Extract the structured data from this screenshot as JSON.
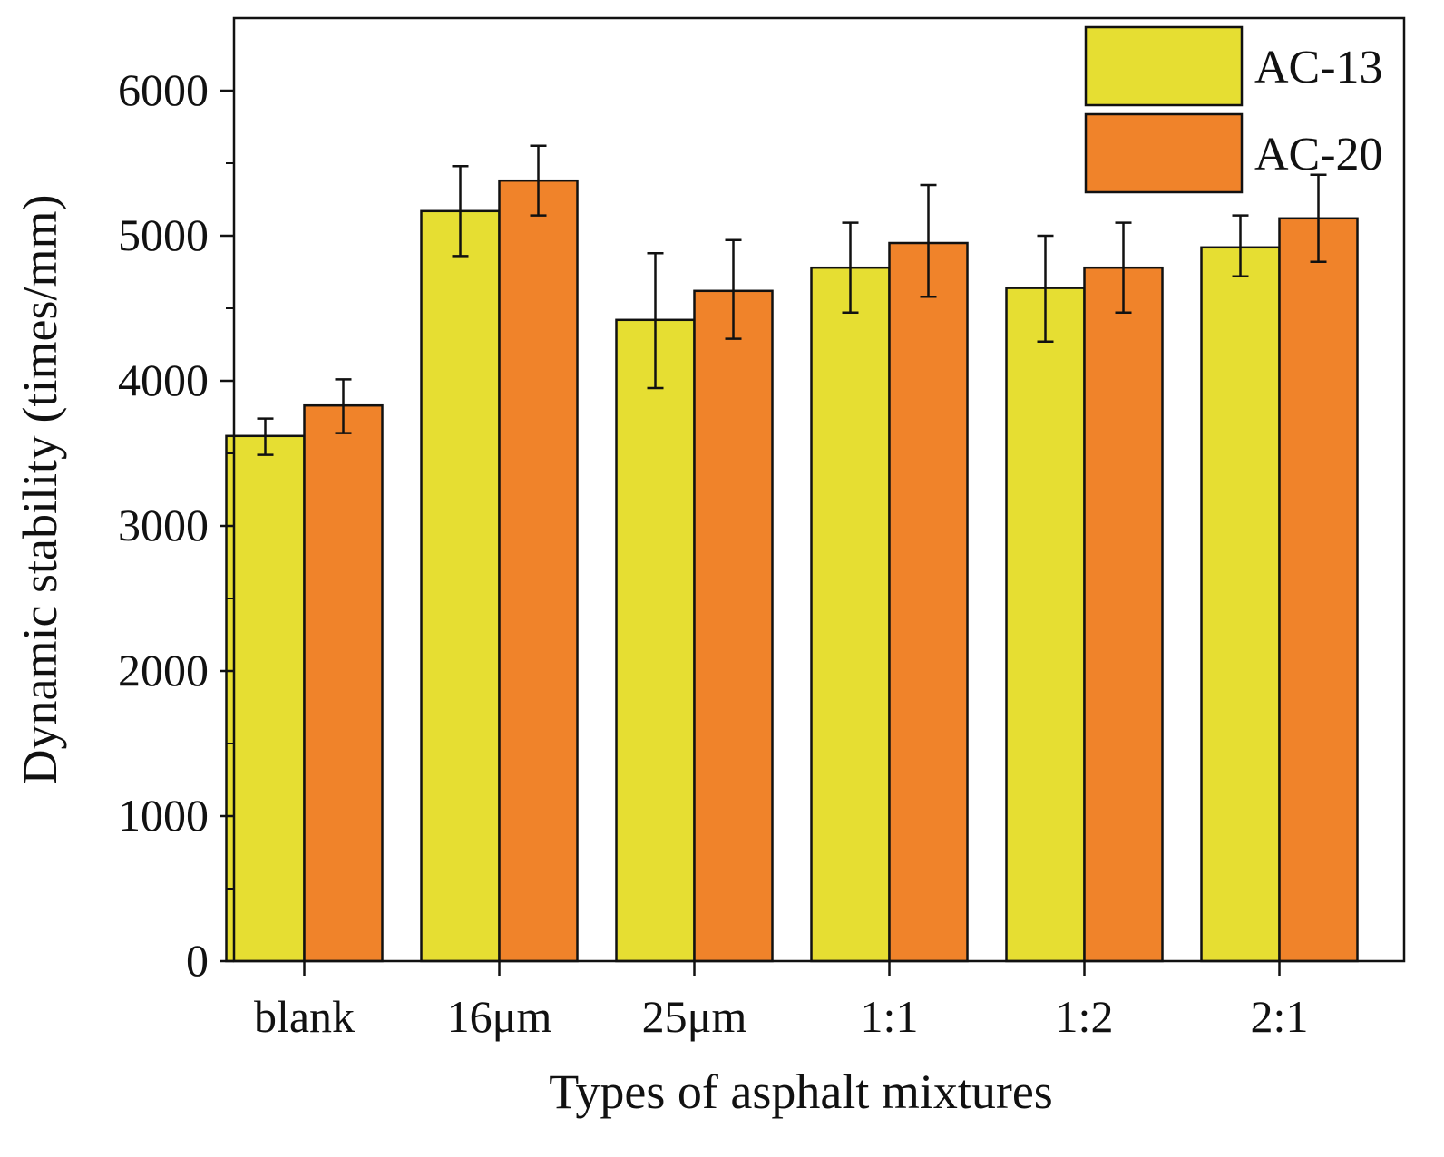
{
  "chart_data": {
    "type": "bar",
    "title": "",
    "xlabel": "Types of asphalt mixtures",
    "ylabel": "Dynamic stability (times/mm)",
    "ylim": [
      0,
      6500
    ],
    "yticks": [
      0,
      1000,
      2000,
      3000,
      4000,
      5000,
      6000
    ],
    "ytick_labels": [
      "0",
      "1000",
      "2000",
      "3000",
      "4000",
      "5000",
      "6000"
    ],
    "categories": [
      "blank",
      "16μm",
      "25μm",
      "1:1",
      "1:2",
      "2:1"
    ],
    "legend_position": "top-right",
    "grid": false,
    "series": [
      {
        "name": "AC-13",
        "color": "#e6de32",
        "values": [
          3620,
          5170,
          4420,
          4780,
          4640,
          4920
        ],
        "error_low": [
          3490,
          4860,
          3950,
          4470,
          4270,
          4720
        ],
        "error_high": [
          3740,
          5480,
          4880,
          5090,
          5000,
          5140
        ]
      },
      {
        "name": "AC-20",
        "color": "#f0832a",
        "values": [
          3830,
          5380,
          4620,
          4950,
          4780,
          5120
        ],
        "error_low": [
          3640,
          5140,
          4290,
          4580,
          4470,
          4820
        ],
        "error_high": [
          4010,
          5620,
          4970,
          5350,
          5090,
          5420
        ]
      }
    ]
  }
}
